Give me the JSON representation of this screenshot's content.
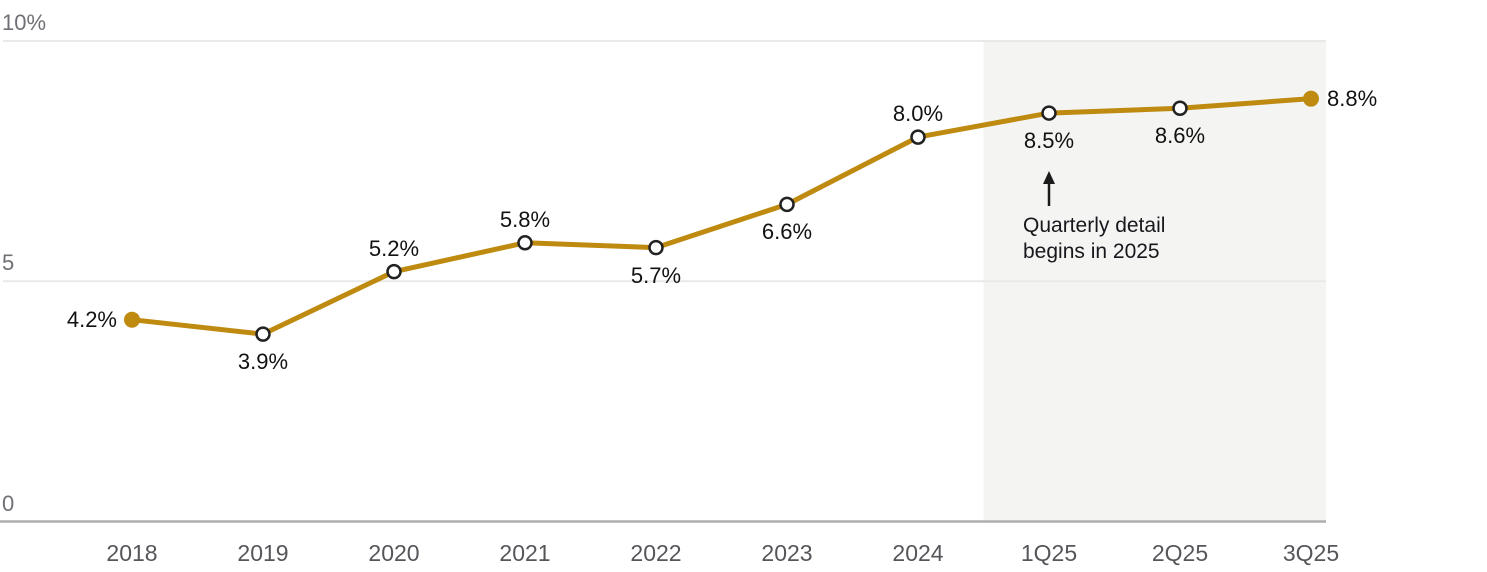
{
  "chart_data": {
    "type": "line",
    "categories": [
      "2018",
      "2019",
      "2020",
      "2021",
      "2022",
      "2023",
      "2024",
      "1Q25",
      "2Q25",
      "3Q25"
    ],
    "values": [
      4.2,
      3.9,
      5.2,
      5.8,
      5.7,
      6.6,
      8.0,
      8.5,
      8.6,
      8.8
    ],
    "point_labels": [
      "4.2%",
      "3.9%",
      "5.2%",
      "5.8%",
      "5.7%",
      "6.6%",
      "8.0%",
      "8.5%",
      "8.6%",
      "8.8%"
    ],
    "label_placement": [
      "left",
      "below",
      "above",
      "above",
      "below",
      "below",
      "above",
      "below",
      "below",
      "right"
    ],
    "marker_style": [
      "filled",
      "open",
      "open",
      "open",
      "open",
      "open",
      "open",
      "open",
      "open",
      "filled"
    ],
    "title": "",
    "xlabel": "",
    "ylabel": "",
    "ylim": [
      0,
      10
    ],
    "yticks": [
      {
        "value": 0,
        "label": "0"
      },
      {
        "value": 5,
        "label": "5"
      },
      {
        "value": 10,
        "label": "10%"
      }
    ],
    "grid": "horizontal",
    "legend": "none",
    "line_color": "#BE8A10",
    "marker_stroke_color": "#222222",
    "highlight_region": {
      "fill": "#F4F4F3",
      "start_category_index": 7,
      "starts_half_step_before_start_category": true
    },
    "annotation": {
      "text_lines": [
        "Quarterly detail",
        "begins in 2025"
      ],
      "arrow_direction": "up",
      "anchor_category_index": 7
    }
  }
}
